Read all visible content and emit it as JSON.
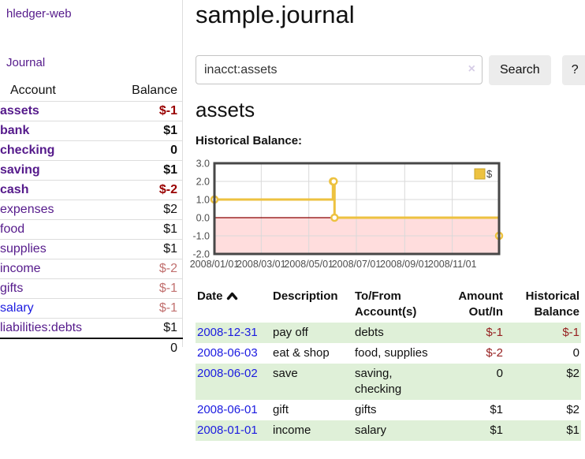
{
  "colors": {
    "accent_purple": "#551a8b",
    "link_blue": "#1b1be0",
    "negative_strong": "#990000",
    "negative_dim": "#c1706f",
    "negative_table": "#962020",
    "row_highlight_green": "#dff0d8",
    "button_gray": "#ececec",
    "chart_line_gold": "#edc240",
    "chart_negative_pink": "#ffdddd",
    "chart_zero_line": "#8b0000"
  },
  "app": {
    "title": "hledger-web"
  },
  "sidebar": {
    "journal_label": "Journal",
    "headers": {
      "account": "Account",
      "balance": "Balance"
    },
    "accounts": [
      {
        "name": "assets",
        "balance": "$-1"
      },
      {
        "name": "bank",
        "balance": "$1"
      },
      {
        "name": "checking",
        "balance": "0"
      },
      {
        "name": "saving",
        "balance": "$1"
      },
      {
        "name": "cash",
        "balance": "$-2"
      },
      {
        "name": "expenses",
        "balance": "$2"
      },
      {
        "name": "food",
        "balance": "$1"
      },
      {
        "name": "supplies",
        "balance": "$1"
      },
      {
        "name": "income",
        "balance": "$-2"
      },
      {
        "name": "gifts",
        "balance": "$-1"
      },
      {
        "name": "salary",
        "balance": "$-1"
      },
      {
        "name": "liabilities:debts",
        "balance": "$1"
      }
    ],
    "total": "0"
  },
  "main": {
    "title": "sample.journal",
    "search": {
      "value": "inacct:assets",
      "clear_icon": "×",
      "button_label": "Search",
      "help_label": "?"
    },
    "account_heading": "assets",
    "chart_label": "Historical Balance:",
    "register": {
      "headers": {
        "date": "Date",
        "description": "Description",
        "tofrom_line1": "To/From",
        "tofrom_line2": "Account(s)",
        "amount_line1": "Amount",
        "amount_line2": "Out/In",
        "balance_line1": "Historical",
        "balance_line2": "Balance"
      },
      "rows": [
        {
          "date": "2008-12-31",
          "description": "pay off",
          "tofrom": "debts",
          "amount": "$-1",
          "balance": "$-1"
        },
        {
          "date": "2008-06-03",
          "description": "eat & shop",
          "tofrom": "food, supplies",
          "amount": "$-2",
          "balance": "0"
        },
        {
          "date": "2008-06-02",
          "description": "save",
          "tofrom": "saving,\nchecking",
          "amount": "0",
          "balance": "$2"
        },
        {
          "date": "2008-06-01",
          "description": "gift",
          "tofrom": "gifts",
          "amount": "$1",
          "balance": "$2"
        },
        {
          "date": "2008-01-01",
          "description": "income",
          "tofrom": "salary",
          "amount": "$1",
          "balance": "$1"
        }
      ]
    }
  },
  "chart_data": {
    "type": "line",
    "step": true,
    "title": "Historical Balance:",
    "series": [
      {
        "name": "$",
        "color": "#edc240",
        "points": [
          [
            "2008-01-01",
            1
          ],
          [
            "2008-06-01",
            2
          ],
          [
            "2008-06-02",
            2
          ],
          [
            "2008-06-03",
            0
          ],
          [
            "2008-12-31",
            -1
          ]
        ]
      }
    ],
    "x_ticks": [
      "2008/01/01",
      "2008/03/01",
      "2008/05/01",
      "2008/07/01",
      "2008/09/01",
      "2008/11/01"
    ],
    "y_ticks": [
      "3.0",
      "2.0",
      "1.0",
      "0.0",
      "-1.0",
      "-2.0"
    ],
    "xlim": [
      "2008-01-01",
      "2008-12-31"
    ],
    "ylim": [
      -2,
      3
    ],
    "grid": true,
    "legend_position": "top-right",
    "negative_fill": "#ffdddd",
    "zero_line_color": "#8b0000"
  }
}
